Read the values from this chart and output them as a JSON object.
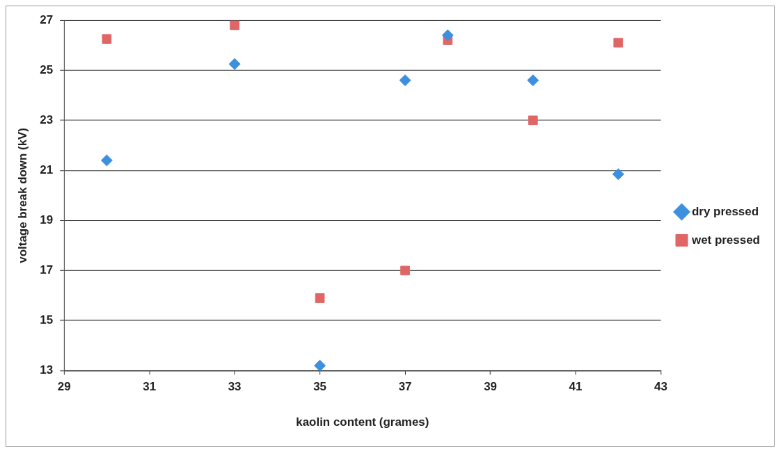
{
  "chart_data": {
    "type": "scatter",
    "xlabel": "kaolin content (grames)",
    "ylabel": "voltage break down (kV)",
    "xlim": [
      29,
      43
    ],
    "xticks": [
      29,
      31,
      33,
      35,
      37,
      39,
      41,
      43
    ],
    "ylim": [
      13,
      27
    ],
    "yticks": [
      13,
      15,
      17,
      19,
      21,
      23,
      25,
      27
    ],
    "grid": "y",
    "legend": "right",
    "series": [
      {
        "name": "dry pressed",
        "color": "#3d8fe0",
        "marker": "diamond",
        "x": [
          30,
          33,
          35,
          37,
          38,
          40,
          42
        ],
        "values": [
          21.4,
          25.25,
          13.2,
          24.6,
          26.4,
          24.6,
          20.85
        ]
      },
      {
        "name": "wet pressed",
        "color": "#e06666",
        "marker": "square",
        "x": [
          30,
          33,
          35,
          37,
          38,
          40,
          42
        ],
        "values": [
          26.25,
          26.8,
          15.9,
          17.0,
          26.2,
          23.0,
          26.1
        ]
      }
    ]
  }
}
